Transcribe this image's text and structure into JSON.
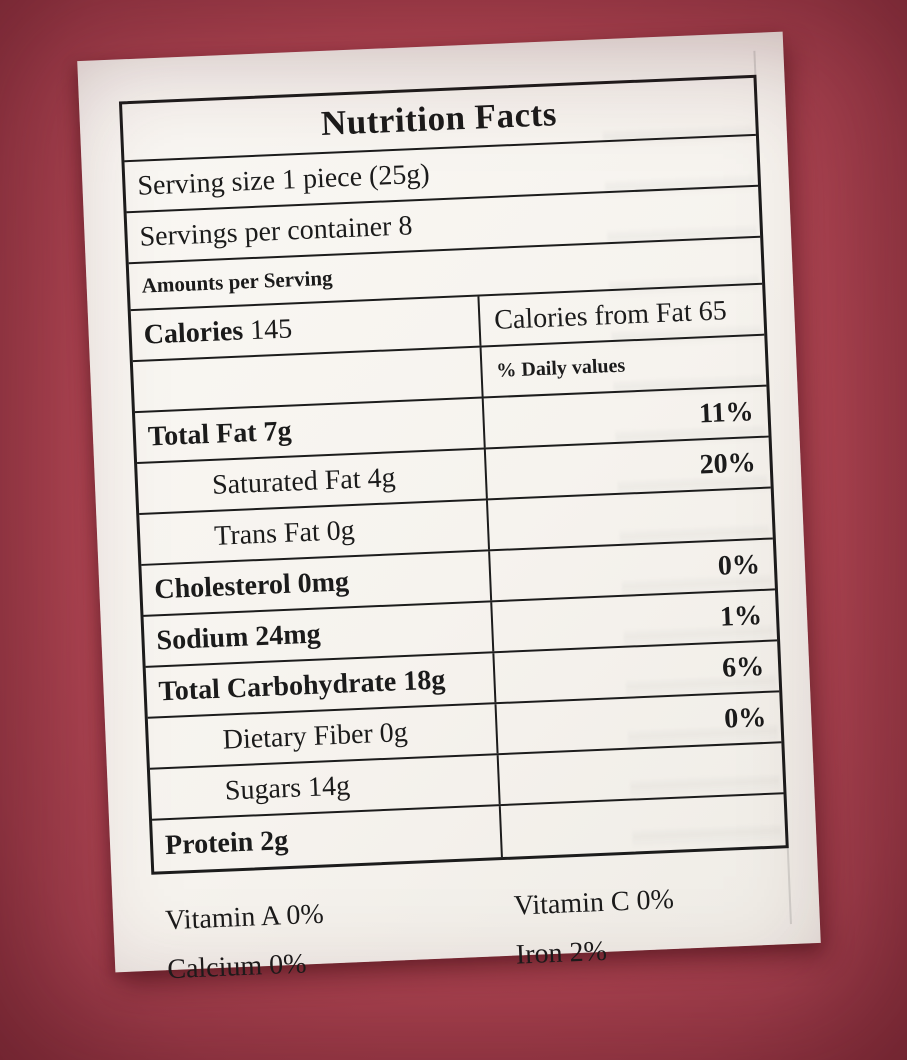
{
  "label": {
    "title": "Nutrition Facts",
    "serving_size": "Serving size 1 piece (25g)",
    "servings_per_container": "Servings per container 8",
    "amounts_header": "Amounts per Serving",
    "calories_label": "Calories",
    "calories_value": "145",
    "calories_from_fat": "Calories from Fat 65",
    "daily_values_header": "% Daily values",
    "rows": [
      {
        "name": "Total Fat 7g",
        "dv": "11%"
      },
      {
        "name": "Saturated Fat 4g",
        "dv": "20%"
      },
      {
        "name": "Trans Fat 0g",
        "dv": ""
      },
      {
        "name": "Cholesterol 0mg",
        "dv": "0%"
      },
      {
        "name": "Sodium 24mg",
        "dv": "1%"
      },
      {
        "name": "Total Carbohydrate 18g",
        "dv": "6%"
      },
      {
        "name": "Dietary Fiber 0g",
        "dv": "0%"
      },
      {
        "name": "Sugars 14g",
        "dv": ""
      },
      {
        "name": "Protein 2g",
        "dv": ""
      }
    ],
    "vitamins": [
      {
        "left": "Vitamin A 0%",
        "right": "Vitamin C 0%"
      },
      {
        "left": "Calcium 0%",
        "right": "Iron 2%"
      }
    ]
  },
  "colors": {
    "background_red": "#b84a57",
    "paper": "#f7f4ef",
    "border": "#1c1c1c",
    "text": "#1b1b1b"
  }
}
